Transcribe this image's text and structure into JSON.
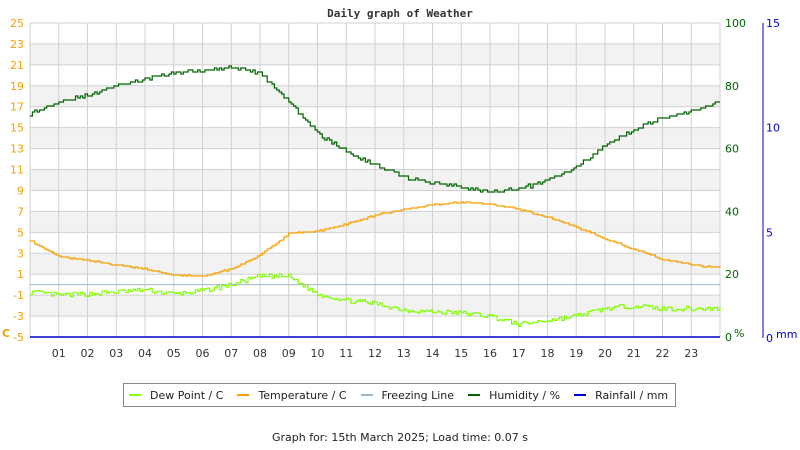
{
  "title": "Daily graph of Weather",
  "footer": "Graph for: 15th March 2025; Load time: 0.07 s",
  "colors": {
    "dew_point": "#80ff00",
    "temperature": "#f5a000",
    "freezing": "#a0b4c8",
    "humidity": "#006400",
    "rainfall": "#0000cc",
    "band": "#f2f2f2",
    "grid": "#d0d0d0"
  },
  "axes": {
    "temp_unit": "C",
    "hum_unit": "%",
    "rain_unit": "mm",
    "temp_ticks": [
      "25",
      "23",
      "21",
      "19",
      "17",
      "15",
      "13",
      "11",
      "9",
      "7",
      "5",
      "3",
      "1",
      "-1",
      "-3",
      "-5"
    ],
    "hum_ticks": [
      "100",
      "80",
      "60",
      "40",
      "20",
      "0"
    ],
    "rain_ticks": [
      "15",
      "10",
      "5",
      "0"
    ],
    "hour_ticks": [
      "01",
      "02",
      "03",
      "04",
      "05",
      "06",
      "07",
      "08",
      "09",
      "10",
      "11",
      "12",
      "13",
      "14",
      "15",
      "16",
      "17",
      "18",
      "19",
      "20",
      "21",
      "22",
      "23"
    ]
  },
  "legend": [
    {
      "label": "Dew Point / C",
      "key": "dew_point"
    },
    {
      "label": "Temperature / C",
      "key": "temperature"
    },
    {
      "label": "Freezing Line",
      "key": "freezing"
    },
    {
      "label": "Humidity / %",
      "key": "humidity"
    },
    {
      "label": "Rainfall / mm",
      "key": "rainfall"
    }
  ],
  "chart_data": {
    "type": "line",
    "title": "Daily graph of Weather",
    "xlabel": "Hour",
    "ylabel": "C",
    "ylabel_right": "%",
    "ylabel_right2": "mm",
    "x": [
      0,
      1,
      2,
      3,
      4,
      5,
      6,
      7,
      8,
      9,
      10,
      11,
      12,
      13,
      14,
      15,
      16,
      17,
      18,
      19,
      20,
      21,
      22,
      23,
      24
    ],
    "ylim": [
      -5,
      25
    ],
    "ylim_right": [
      0,
      100
    ],
    "ylim_right2": [
      0,
      15
    ],
    "grid": true,
    "legend_position": "bottom",
    "series": [
      {
        "name": "Dew Point / C",
        "axis": "temp",
        "values": [
          -0.7,
          -1.0,
          -0.9,
          -0.7,
          -0.5,
          -0.9,
          -0.6,
          0.0,
          0.8,
          0.8,
          -0.9,
          -1.5,
          -1.8,
          -2.4,
          -2.6,
          -2.7,
          -3.0,
          -3.8,
          -3.4,
          -3.0,
          -2.3,
          -2.0,
          -2.3,
          -2.3,
          -2.3
        ]
      },
      {
        "name": "Temperature / C",
        "axis": "temp",
        "values": [
          4.2,
          2.7,
          2.3,
          1.9,
          1.5,
          0.9,
          0.8,
          1.5,
          2.8,
          4.9,
          5.1,
          5.8,
          6.6,
          7.2,
          7.6,
          7.9,
          7.7,
          7.2,
          6.5,
          5.5,
          4.4,
          3.4,
          2.4,
          1.9,
          1.6
        ]
      },
      {
        "name": "Freezing Line",
        "axis": "temp",
        "values": [
          0,
          0,
          0,
          0,
          0,
          0,
          0,
          0,
          0,
          0,
          0,
          0,
          0,
          0,
          0,
          0,
          0,
          0,
          0,
          0,
          0,
          0,
          0,
          0,
          0
        ]
      },
      {
        "name": "Humidity / %",
        "axis": "hum",
        "values": [
          71,
          75,
          77,
          80,
          82,
          84,
          85,
          86,
          84,
          75,
          65,
          59,
          55,
          51,
          49,
          48,
          46,
          47,
          50,
          54,
          61,
          66,
          70,
          72,
          75
        ]
      },
      {
        "name": "Rainfall / mm",
        "axis": "rain",
        "values": [
          0,
          0,
          0,
          0,
          0,
          0,
          0,
          0,
          0,
          0,
          0,
          0,
          0,
          0,
          0,
          0,
          0,
          0,
          0,
          0,
          0,
          0,
          0,
          0,
          0
        ]
      }
    ]
  }
}
